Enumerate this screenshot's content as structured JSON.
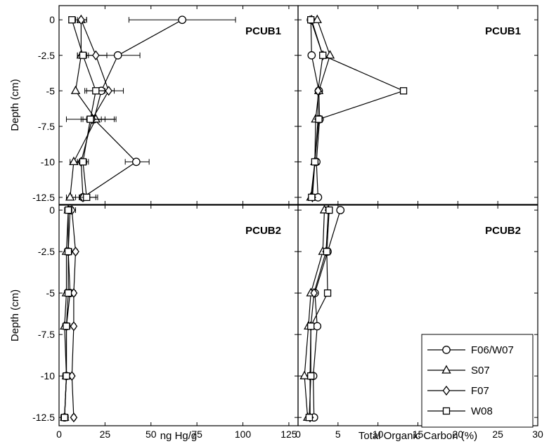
{
  "chart_data": [
    {
      "type": "scatter",
      "panel_label": "PCUB1",
      "xlabel": "",
      "ylabel": "Depth (cm)",
      "xlim": [
        0,
        130
      ],
      "ylim": [
        -13,
        1
      ],
      "xticks": [
        "0",
        "25",
        "50",
        "75",
        "100",
        "125"
      ],
      "yticks": [
        "0",
        "-2.5",
        "-5",
        "-7.5",
        "-10",
        "-12.5"
      ],
      "series": [
        {
          "name": "F06/W07",
          "marker": "circle",
          "x": [
            67,
            32,
            23,
            19,
            42,
            13
          ],
          "y": [
            0,
            -2.5,
            -5,
            -7,
            -10,
            -12.5
          ],
          "xerr_low": [
            38,
            13,
            14,
            12,
            36,
            7
          ],
          "xerr_high": [
            96,
            44,
            35,
            31,
            49,
            20
          ]
        },
        {
          "name": "S07",
          "marker": "triangle",
          "x": [
            12,
            12,
            9,
            20,
            8,
            6
          ],
          "y": [
            0,
            -2.5,
            -5,
            -7,
            -10,
            -12.5
          ],
          "xerr_low": [
            9,
            10,
            9,
            15,
            6,
            4
          ],
          "xerr_high": [
            15,
            14,
            9,
            25,
            11,
            9
          ]
        },
        {
          "name": "F07",
          "marker": "diamond",
          "x": [
            12,
            20,
            27,
            18,
            12,
            13
          ],
          "y": [
            0,
            -2.5,
            -5,
            -7,
            -10,
            -12.5
          ],
          "xerr_low": [
            10,
            15,
            21,
            13,
            10,
            11
          ],
          "xerr_high": [
            15,
            26,
            30,
            23,
            15,
            16
          ]
        },
        {
          "name": "W08",
          "marker": "square",
          "x": [
            7,
            13,
            20,
            17,
            13,
            15
          ],
          "y": [
            0,
            -2.5,
            -5,
            -7,
            -10,
            -12.5
          ],
          "xerr_low": [
            6,
            10,
            15,
            4,
            10,
            11
          ],
          "xerr_high": [
            8,
            16,
            25,
            30,
            16,
            21
          ]
        }
      ]
    },
    {
      "type": "scatter",
      "panel_label": "PCUB1",
      "xlabel": "",
      "ylabel": "",
      "xlim": [
        0,
        30
      ],
      "ylim": [
        -13,
        1
      ],
      "series": [
        {
          "name": "F06/W07",
          "marker": "circle",
          "x": [
            1.6,
            1.7,
            2.6,
            2.7,
            2.3,
            2.5
          ],
          "y": [
            0,
            -2.5,
            -5,
            -7,
            -10,
            -12.5
          ]
        },
        {
          "name": "S07",
          "marker": "triangle",
          "x": [
            2.4,
            4.0,
            2.6,
            2.2,
            2.1,
            1.6
          ],
          "y": [
            0,
            -2.5,
            -5,
            -7,
            -10,
            -12.5
          ]
        },
        {
          "name": "F07",
          "marker": "diamond",
          "x": [
            1.7,
            3.1,
            2.5,
            2.5,
            2.1,
            1.8
          ],
          "y": [
            0,
            -2.5,
            -5,
            -7,
            -10,
            -12.5
          ]
        },
        {
          "name": "W08",
          "marker": "square",
          "x": [
            1.6,
            3.1,
            13.2,
            2.6,
            2.1,
            1.7
          ],
          "y": [
            0,
            -2.5,
            -5,
            -7,
            -10,
            -12.5
          ]
        }
      ]
    },
    {
      "type": "scatter",
      "panel_label": "PCUB2",
      "xlabel": "ng Hg/g",
      "ylabel": "Depth (cm)",
      "xlim": [
        0,
        130
      ],
      "ylim": [
        -13,
        0.3
      ],
      "xticks": [
        "0",
        "25",
        "50",
        "75",
        "100",
        "125"
      ],
      "yticks": [
        "0",
        "-2.5",
        "-5",
        "-7.5",
        "-10",
        "-12.5"
      ],
      "series": [
        {
          "name": "F06/W07",
          "marker": "circle",
          "x": [
            6,
            5,
            6,
            4,
            4,
            3
          ],
          "y": [
            0,
            -2.5,
            -5,
            -7,
            -10,
            -12.5
          ],
          "xerr_low": [
            4,
            3,
            3,
            2,
            2,
            1
          ],
          "xerr_high": [
            9,
            7,
            9,
            6,
            6,
            5
          ]
        },
        {
          "name": "S07",
          "marker": "triangle",
          "x": [
            5,
            4,
            4,
            3,
            4,
            3
          ],
          "y": [
            0,
            -2.5,
            -5,
            -7,
            -10,
            -12.5
          ],
          "xerr_low": [
            4,
            3,
            3,
            2,
            3,
            2
          ],
          "xerr_high": [
            6,
            5,
            5,
            4,
            5,
            4
          ]
        },
        {
          "name": "F07",
          "marker": "diamond",
          "x": [
            7,
            9,
            8,
            8,
            7,
            8
          ],
          "y": [
            0,
            -2.5,
            -5,
            -7,
            -10,
            -12.5
          ],
          "xerr_low": [
            6,
            8,
            7,
            7,
            6,
            7
          ],
          "xerr_high": [
            8,
            10,
            9,
            9,
            8,
            9
          ]
        },
        {
          "name": "W08",
          "marker": "square",
          "x": [
            5,
            5,
            5,
            4,
            4,
            3
          ],
          "y": [
            0,
            -2.5,
            -5,
            -7,
            -10,
            -12.5
          ],
          "xerr_low": [
            3,
            4,
            4,
            3,
            3,
            2
          ],
          "xerr_high": [
            7,
            6,
            6,
            5,
            5,
            4
          ]
        }
      ]
    },
    {
      "type": "scatter",
      "panel_label": "PCUB2",
      "xlabel": "Total Organic Carbon (%)",
      "ylabel": "",
      "xlim": [
        0,
        30
      ],
      "ylim": [
        -13,
        0.3
      ],
      "xticks": [
        "0",
        "5",
        "10",
        "15",
        "20",
        "25",
        "30"
      ],
      "series": [
        {
          "name": "F06/W07",
          "marker": "circle",
          "x": [
            5.3,
            3.7,
            2.1,
            2.4,
            1.9,
            2.0
          ],
          "y": [
            0,
            -2.5,
            -5,
            -7,
            -10,
            -12.5
          ]
        },
        {
          "name": "S07",
          "marker": "triangle",
          "x": [
            3.3,
            3.1,
            1.6,
            1.3,
            0.8,
            1.2
          ],
          "y": [
            0,
            -2.5,
            -5,
            -7,
            -10,
            -12.5
          ]
        },
        {
          "name": "F07",
          "marker": "diamond",
          "x": [
            3.8,
            3.5,
            2.0,
            1.6,
            1.5,
            1.5
          ],
          "y": [
            0,
            -2.5,
            -5,
            -7,
            -10,
            -12.5
          ]
        },
        {
          "name": "W08",
          "marker": "square",
          "x": [
            3.9,
            3.6,
            3.7,
            1.6,
            1.6,
            1.4
          ],
          "y": [
            0,
            -2.5,
            -5,
            -7,
            -10,
            -12.5
          ]
        }
      ]
    }
  ],
  "legend": {
    "placement": "lower-right",
    "entries": [
      {
        "name": "F06/W07",
        "marker": "circle"
      },
      {
        "name": "S07",
        "marker": "triangle"
      },
      {
        "name": "F07",
        "marker": "diamond"
      },
      {
        "name": "W08",
        "marker": "square"
      }
    ]
  }
}
